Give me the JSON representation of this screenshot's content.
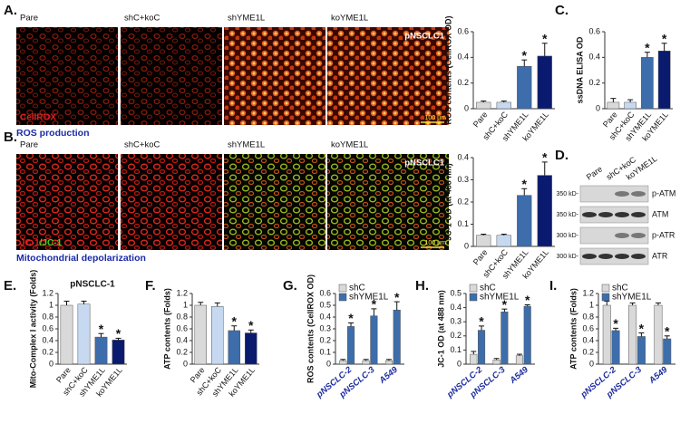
{
  "panels": [
    "A.",
    "B.",
    "C.",
    "D.",
    "E.",
    "F.",
    "G.",
    "H.",
    "I."
  ],
  "images": [
    {
      "labels": [
        "Pare",
        "shC+koC",
        "shYME1L",
        "koYME1L"
      ],
      "tag": "pNSCLC1",
      "stain": "CellROX",
      "scale": "100 µm",
      "caption": "ROS production"
    },
    {
      "labels": [
        "Pare",
        "shC+koC",
        "shYME1L",
        "koYME1L"
      ],
      "tag": "pNSCLC1",
      "stain_red": "JC-1",
      "stain_green": "/JC-1",
      "scale": "100 µm",
      "caption": "Mitochondrial depolarization"
    }
  ],
  "blot": {
    "lanes": [
      "Pare",
      "shC+koC",
      "koYME1L"
    ],
    "rows": [
      {
        "marker": "350 kD-",
        "protein": "p-ATM"
      },
      {
        "marker": "350 kD-",
        "protein": "ATM"
      },
      {
        "marker": "300 kD-",
        "protein": "p-ATR"
      },
      {
        "marker": "300 kD-",
        "protein": "ATR"
      }
    ]
  },
  "chart_data": [
    {
      "type": "bar",
      "ylabel": "ROS contents (CellROX OD)",
      "categories": [
        "Pare",
        "shC+koC",
        "shYME1L",
        "koYME1L"
      ],
      "values": [
        0.05,
        0.05,
        0.33,
        0.41
      ],
      "errors": [
        0.01,
        0.01,
        0.05,
        0.1
      ],
      "colors": [
        "#d9d9d9",
        "#c6d9f0",
        "#3d6dab",
        "#0a1a6e"
      ],
      "ylim": [
        0,
        0.6
      ],
      "yticks": [
        0,
        0.2,
        0.4,
        0.6
      ],
      "significance": "*",
      "starred": [
        false,
        false,
        true,
        true
      ]
    },
    {
      "type": "bar",
      "ylabel": "ssDNA ELISA OD",
      "categories": [
        "Pare",
        "shC+koC",
        "shYME1L",
        "koYME1L"
      ],
      "values": [
        0.05,
        0.05,
        0.4,
        0.45
      ],
      "errors": [
        0.03,
        0.02,
        0.04,
        0.06
      ],
      "colors": [
        "#d9d9d9",
        "#c6d9f0",
        "#3d6dab",
        "#0a1a6e"
      ],
      "ylim": [
        0,
        0.6
      ],
      "yticks": [
        0,
        0.2,
        0.4,
        0.6
      ],
      "significance": "*",
      "starred": [
        false,
        false,
        true,
        true
      ]
    },
    {
      "type": "bar",
      "ylabel": "JC-1 OD (at 488 nm)",
      "categories": [
        "Pare",
        "shC+koC",
        "shYME1L",
        "koYME1L"
      ],
      "values": [
        0.05,
        0.05,
        0.23,
        0.32
      ],
      "errors": [
        0.005,
        0.005,
        0.03,
        0.06
      ],
      "colors": [
        "#d9d9d9",
        "#c6d9f0",
        "#3d6dab",
        "#0a1a6e"
      ],
      "ylim": [
        0,
        0.4
      ],
      "yticks": [
        0,
        0.1,
        0.2,
        0.3,
        0.4
      ],
      "significance": "*",
      "starred": [
        false,
        false,
        true,
        true
      ]
    },
    {
      "type": "bar",
      "title": "pNSCLC-1",
      "ylabel": "Mito-Complex I activity (Folds)",
      "categories": [
        "Pare",
        "shC+koC",
        "shYME1L",
        "koYME1L"
      ],
      "values": [
        1.0,
        1.02,
        0.46,
        0.41
      ],
      "errors": [
        0.07,
        0.05,
        0.06,
        0.03
      ],
      "colors": [
        "#d9d9d9",
        "#c6d9f0",
        "#3d6dab",
        "#0a1a6e"
      ],
      "ylim": [
        0,
        1.2
      ],
      "yticks": [
        0,
        0.2,
        0.4,
        0.6,
        0.8,
        1,
        1.2
      ],
      "significance": "*",
      "starred": [
        false,
        false,
        true,
        true
      ]
    },
    {
      "type": "bar",
      "ylabel": "ATP contents (Folds)",
      "categories": [
        "Pare",
        "shC+koC",
        "shYME1L",
        "koYME1L"
      ],
      "values": [
        1.0,
        0.98,
        0.57,
        0.53
      ],
      "errors": [
        0.05,
        0.06,
        0.08,
        0.05
      ],
      "colors": [
        "#d9d9d9",
        "#c6d9f0",
        "#3d6dab",
        "#0a1a6e"
      ],
      "ylim": [
        0,
        1.2
      ],
      "yticks": [
        0,
        0.2,
        0.4,
        0.6,
        0.8,
        1,
        1.2
      ],
      "significance": "*",
      "starred": [
        false,
        false,
        true,
        true
      ]
    },
    {
      "type": "grouped-bar",
      "ylabel": "ROS contents (CellROX OD)",
      "categories": [
        "pNSCLC-2",
        "pNSCLC-3",
        "A549"
      ],
      "series": [
        {
          "name": "shC",
          "color": "#d9d9d9",
          "values": [
            0.03,
            0.03,
            0.03
          ],
          "errors": [
            0.01,
            0.01,
            0.01
          ],
          "starred": false
        },
        {
          "name": "shYME1L",
          "color": "#3d6dab",
          "values": [
            0.32,
            0.41,
            0.46
          ],
          "errors": [
            0.03,
            0.06,
            0.07
          ],
          "starred": true
        }
      ],
      "ylim": [
        0,
        0.6
      ],
      "yticks": [
        0,
        0.1,
        0.2,
        0.3,
        0.4,
        0.5,
        0.6
      ],
      "significance": "*",
      "legend": "top-left"
    },
    {
      "type": "grouped-bar",
      "ylabel": "JC-1 OD (at 488 nm)",
      "categories": [
        "pNSCLC-2",
        "pNSCLC-3",
        "A549"
      ],
      "series": [
        {
          "name": "shC",
          "color": "#d9d9d9",
          "values": [
            0.07,
            0.03,
            0.06
          ],
          "errors": [
            0.02,
            0.01,
            0.01
          ],
          "starred": false
        },
        {
          "name": "shYME1L",
          "color": "#3d6dab",
          "values": [
            0.24,
            0.37,
            0.41
          ],
          "errors": [
            0.03,
            0.02,
            0.01
          ],
          "starred": true
        }
      ],
      "ylim": [
        0,
        0.5
      ],
      "yticks": [
        0,
        0.1,
        0.2,
        0.3,
        0.4,
        0.5
      ],
      "significance": "*",
      "legend": "top-left"
    },
    {
      "type": "grouped-bar",
      "ylabel": "ATP contents (Folds)",
      "categories": [
        "pNSCLC-2",
        "pNSCLC-3",
        "A549"
      ],
      "series": [
        {
          "name": "shC",
          "color": "#d9d9d9",
          "values": [
            1.0,
            1.0,
            1.0
          ],
          "errors": [
            0.07,
            0.04,
            0.04
          ],
          "starred": false
        },
        {
          "name": "shYME1L",
          "color": "#3d6dab",
          "values": [
            0.57,
            0.47,
            0.43
          ],
          "errors": [
            0.04,
            0.06,
            0.05
          ],
          "starred": true
        }
      ],
      "ylim": [
        0,
        1.2
      ],
      "yticks": [
        0,
        0.2,
        0.4,
        0.6,
        0.8,
        1,
        1.2
      ],
      "significance": "*",
      "legend": "top-left"
    }
  ]
}
